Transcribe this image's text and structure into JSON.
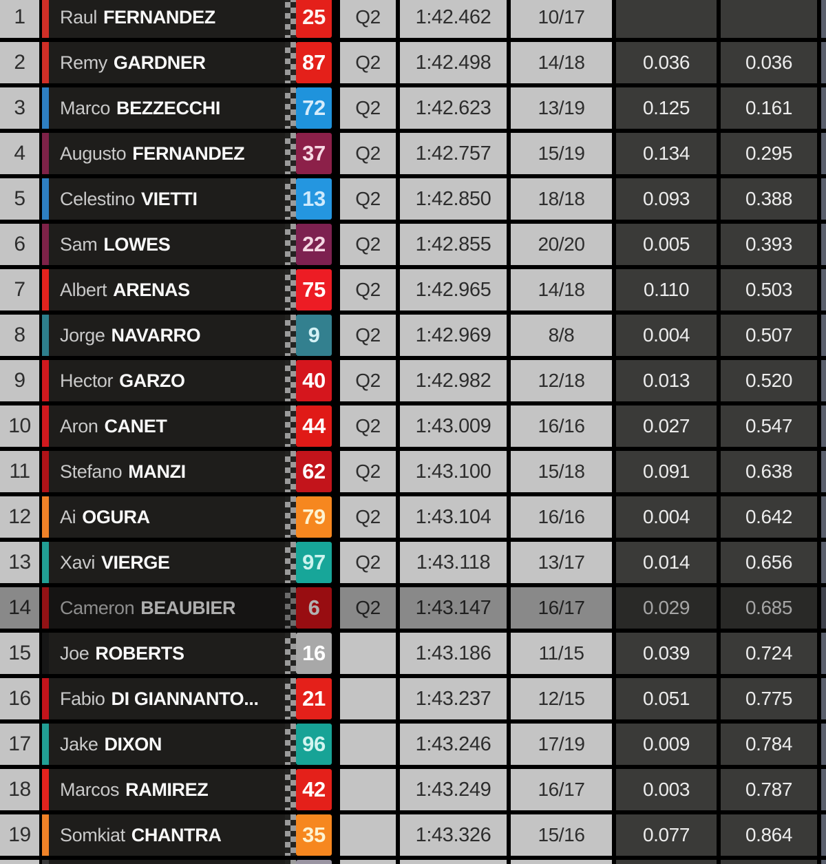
{
  "table": {
    "session_label": "Q2",
    "columns": [
      "position",
      "rider",
      "number",
      "session",
      "lap_time",
      "laps",
      "gap_previous",
      "gap_first"
    ],
    "colors": {
      "light_cell": "#c4c4c4",
      "dark_cell": "#3a3a38",
      "name_cell": "#1e1d1b",
      "border": "#000000",
      "right_edge": "#5a5f6c"
    },
    "rows": [
      {
        "pos": "1",
        "first": "Raul",
        "last": "FERNANDEZ",
        "num": "25",
        "badge": "#e4201a",
        "numColor": "#fdf3f0",
        "stripe": "#d02f27",
        "session": "Q2",
        "time": "1:42.462",
        "laps": "10/17",
        "gap1": "",
        "gap2": "",
        "dim": false
      },
      {
        "pos": "2",
        "first": "Remy",
        "last": "GARDNER",
        "num": "87",
        "badge": "#e4201a",
        "numColor": "#ffffff",
        "stripe": "#d02f27",
        "session": "Q2",
        "time": "1:42.498",
        "laps": "14/18",
        "gap1": "0.036",
        "gap2": "0.036",
        "dim": false
      },
      {
        "pos": "3",
        "first": "Marco",
        "last": "BEZZECCHI",
        "num": "72",
        "badge": "#1f93dc",
        "numColor": "#d6ecfb",
        "stripe": "#2e7fc2",
        "session": "Q2",
        "time": "1:42.623",
        "laps": "13/19",
        "gap1": "0.125",
        "gap2": "0.161",
        "dim": false
      },
      {
        "pos": "4",
        "first": "Augusto",
        "last": "FERNANDEZ",
        "num": "37",
        "badge": "#8c2049",
        "numColor": "#f6d9e4",
        "stripe": "#7e2248",
        "session": "Q2",
        "time": "1:42.757",
        "laps": "15/19",
        "gap1": "0.134",
        "gap2": "0.295",
        "dim": false
      },
      {
        "pos": "5",
        "first": "Celestino",
        "last": "VIETTI",
        "num": "13",
        "badge": "#2496e0",
        "numColor": "#cfeafc",
        "stripe": "#2e7fc2",
        "session": "Q2",
        "time": "1:42.850",
        "laps": "18/18",
        "gap1": "0.093",
        "gap2": "0.388",
        "dim": false
      },
      {
        "pos": "6",
        "first": "Sam",
        "last": "LOWES",
        "num": "22",
        "badge": "#7d2150",
        "numColor": "#f4d7e3",
        "stripe": "#7e2248",
        "session": "Q2",
        "time": "1:42.855",
        "laps": "20/20",
        "gap1": "0.005",
        "gap2": "0.393",
        "dim": false
      },
      {
        "pos": "7",
        "first": "Albert",
        "last": "ARENAS",
        "num": "75",
        "badge": "#ed1c24",
        "numColor": "#ffffff",
        "stripe": "#e3231e",
        "session": "Q2",
        "time": "1:42.965",
        "laps": "14/18",
        "gap1": "0.110",
        "gap2": "0.503",
        "dim": false
      },
      {
        "pos": "8",
        "first": "Jorge",
        "last": "NAVARRO",
        "num": "9",
        "badge": "#33808f",
        "numColor": "#d3f1f5",
        "stripe": "#2e7f8c",
        "session": "Q2",
        "time": "1:42.969",
        "laps": "8/8",
        "gap1": "0.004",
        "gap2": "0.507",
        "dim": false
      },
      {
        "pos": "9",
        "first": "Hector",
        "last": "GARZO",
        "num": "40",
        "badge": "#d5161d",
        "numColor": "#ffffff",
        "stripe": "#d0191e",
        "session": "Q2",
        "time": "1:42.982",
        "laps": "12/18",
        "gap1": "0.013",
        "gap2": "0.520",
        "dim": false
      },
      {
        "pos": "10",
        "first": "Aron",
        "last": "CANET",
        "num": "44",
        "badge": "#e01a17",
        "numColor": "#ffffff",
        "stripe": "#d0191e",
        "session": "Q2",
        "time": "1:43.009",
        "laps": "16/16",
        "gap1": "0.027",
        "gap2": "0.547",
        "dim": false
      },
      {
        "pos": "11",
        "first": "Stefano",
        "last": "MANZI",
        "num": "62",
        "badge": "#c3141b",
        "numColor": "#ffffff",
        "stripe": "#b01318",
        "session": "Q2",
        "time": "1:43.100",
        "laps": "15/18",
        "gap1": "0.091",
        "gap2": "0.638",
        "dim": false
      },
      {
        "pos": "12",
        "first": "Ai",
        "last": "OGURA",
        "num": "79",
        "badge": "#f6871f",
        "numColor": "#fdf2d0",
        "stripe": "#f08228",
        "session": "Q2",
        "time": "1:43.104",
        "laps": "16/16",
        "gap1": "0.004",
        "gap2": "0.642",
        "dim": false
      },
      {
        "pos": "13",
        "first": "Xavi",
        "last": "VIERGE",
        "num": "97",
        "badge": "#17a699",
        "numColor": "#ccf3ee",
        "stripe": "#229e94",
        "session": "Q2",
        "time": "1:43.118",
        "laps": "13/17",
        "gap1": "0.014",
        "gap2": "0.656",
        "dim": false
      },
      {
        "pos": "14",
        "first": "Cameron",
        "last": "BEAUBIER",
        "num": "6",
        "badge": "#d91218",
        "numColor": "#ffffff",
        "stripe": "#d0191e",
        "session": "Q2",
        "time": "1:43.147",
        "laps": "16/17",
        "gap1": "0.029",
        "gap2": "0.685",
        "dim": true
      },
      {
        "pos": "15",
        "first": "Joe",
        "last": "ROBERTS",
        "num": "16",
        "badge": "#a8a8a8",
        "numColor": "#ffffff",
        "stripe": "#161616",
        "session": "",
        "time": "1:43.186",
        "laps": "11/15",
        "gap1": "0.039",
        "gap2": "0.724",
        "dim": false
      },
      {
        "pos": "16",
        "first": "Fabio",
        "last": "DI GIANNANTO...",
        "num": "21",
        "badge": "#e4201a",
        "numColor": "#ffffff",
        "stripe": "#c3141b",
        "session": "",
        "time": "1:43.237",
        "laps": "12/15",
        "gap1": "0.051",
        "gap2": "0.775",
        "dim": false
      },
      {
        "pos": "17",
        "first": "Jake",
        "last": "DIXON",
        "num": "96",
        "badge": "#17a396",
        "numColor": "#d2f4ef",
        "stripe": "#229e94",
        "session": "",
        "time": "1:43.246",
        "laps": "17/19",
        "gap1": "0.009",
        "gap2": "0.784",
        "dim": false
      },
      {
        "pos": "18",
        "first": "Marcos",
        "last": "RAMIREZ",
        "num": "42",
        "badge": "#e4201a",
        "numColor": "#ffffff",
        "stripe": "#e3231e",
        "session": "",
        "time": "1:43.249",
        "laps": "16/17",
        "gap1": "0.003",
        "gap2": "0.787",
        "dim": false
      },
      {
        "pos": "19",
        "first": "Somkiat",
        "last": "CHANTRA",
        "num": "35",
        "badge": "#f6871f",
        "numColor": "#fdf2d0",
        "stripe": "#f08228",
        "session": "",
        "time": "1:43.326",
        "laps": "15/16",
        "gap1": "0.077",
        "gap2": "0.864",
        "dim": false
      },
      {
        "pos": "",
        "first": "",
        "last": "",
        "num": "",
        "badge": "#9a95a2",
        "numColor": "#ffffff",
        "stripe": "#3a3a3a",
        "session": "",
        "time": "",
        "laps": "",
        "gap1": "",
        "gap2": "",
        "dim": false
      }
    ]
  }
}
